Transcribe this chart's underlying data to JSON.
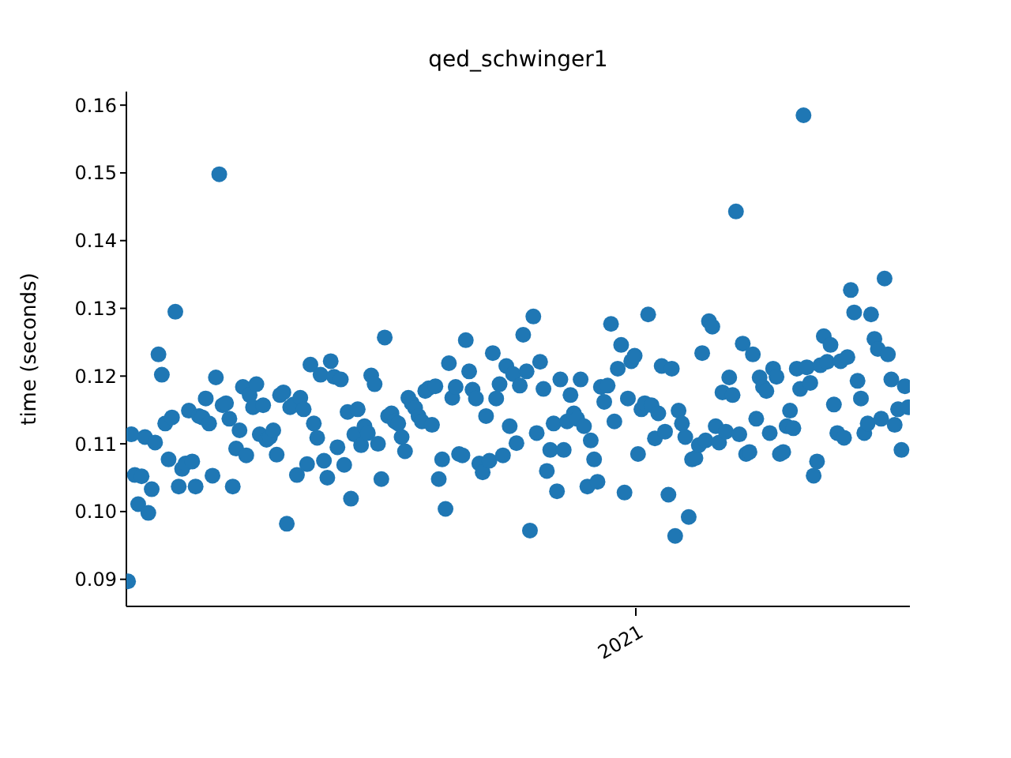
{
  "chart_data": {
    "type": "scatter",
    "title": "qed_schwinger1",
    "ylabel": "time (seconds)",
    "marker": "circle",
    "grid": false,
    "legend": false,
    "annotations": [
      "2021"
    ],
    "ylim": [
      0.086,
      0.162
    ],
    "yticks": [
      0.09,
      {
        "value": 0.1,
        "label": "0.10"
      },
      0.11,
      0.12,
      0.13,
      0.14,
      0.15,
      0.16
    ],
    "categories": [
      null,
      null,
      null,
      null,
      null,
      null,
      null,
      null,
      null,
      null,
      null,
      null,
      null,
      null,
      null,
      null,
      null,
      null,
      null,
      null,
      null,
      null,
      null,
      null,
      null,
      null,
      null,
      null,
      null,
      null,
      null,
      null,
      null,
      null,
      null,
      null,
      null,
      null,
      null,
      null,
      null,
      null,
      null,
      null,
      null,
      null,
      null,
      null,
      null,
      null,
      null,
      null,
      null,
      null,
      null,
      null,
      null,
      null,
      null,
      null,
      null,
      null,
      null,
      null,
      null,
      null,
      null,
      null,
      null,
      null,
      null,
      null,
      null,
      null,
      null,
      null,
      null,
      null,
      null,
      null,
      null,
      null,
      null,
      null,
      null,
      null,
      null,
      null,
      null,
      null,
      null,
      null,
      null,
      null,
      null,
      null,
      null,
      null,
      null,
      null,
      null,
      null,
      null,
      null,
      null,
      null,
      null,
      null,
      null,
      null,
      null,
      null,
      null,
      null,
      null,
      null,
      null,
      null,
      null,
      null,
      null,
      null,
      null,
      null,
      null,
      null,
      null,
      null,
      null,
      null,
      null,
      null,
      null,
      null,
      null,
      null,
      null,
      null,
      null,
      null,
      null,
      null,
      null,
      null,
      null,
      null,
      null,
      null,
      null,
      null,
      null,
      null,
      null,
      null,
      null,
      null,
      null,
      null,
      null,
      null,
      null,
      null,
      null,
      null,
      null,
      null,
      null,
      null,
      null,
      null,
      null,
      null,
      null,
      null,
      null,
      null,
      null,
      null,
      null,
      null,
      null,
      null,
      null,
      null,
      null,
      null,
      null,
      null,
      null,
      null,
      null,
      null,
      null,
      null,
      null,
      null,
      null,
      null,
      null,
      null,
      null,
      null,
      null,
      null,
      null,
      null,
      null,
      null,
      null,
      null,
      null,
      null,
      null,
      null,
      null,
      null,
      null,
      null,
      null,
      null,
      null,
      null,
      null,
      null,
      null,
      null,
      null,
      null,
      null,
      null,
      null,
      null
    ],
    "series": [
      {
        "color": "#1f77b4",
        "values": [
          0.0897,
          0.1114,
          0.1054,
          0.1011,
          0.1052,
          0.111,
          0.0998,
          0.1033,
          0.1102,
          0.1232,
          0.1202,
          0.113,
          0.1077,
          0.1139,
          0.1295,
          0.1037,
          0.1063,
          0.1071,
          0.1149,
          0.1074,
          0.1037,
          0.1141,
          0.1139,
          0.1167,
          0.113,
          0.1053,
          0.1198,
          0.1498,
          0.1157,
          0.116,
          0.1137,
          0.1037,
          0.1093,
          0.112,
          0.1184,
          0.1083,
          0.1172,
          0.1154,
          0.1188,
          0.1114,
          0.1157,
          0.1106,
          0.111,
          0.112,
          0.1084,
          0.1172,
          0.1176,
          0.0982,
          0.1154,
          0.1158,
          0.1054,
          0.1168,
          0.1151,
          0.107,
          0.1217,
          0.113,
          0.1109,
          0.1202,
          0.1075,
          0.105,
          0.1222,
          0.1199,
          0.1095,
          0.1195,
          0.1069,
          0.1147,
          0.1019,
          0.1114,
          0.1151,
          0.1098,
          0.1126,
          0.1116,
          0.1201,
          0.1188,
          0.11,
          0.1048,
          0.1257,
          0.1141,
          0.1145,
          0.1133,
          0.113,
          0.111,
          0.1089,
          0.1168,
          0.116,
          0.1153,
          0.1141,
          0.1133,
          0.1178,
          0.1182,
          0.1128,
          0.1185,
          0.1048,
          0.1077,
          0.1004,
          0.1219,
          0.1168,
          0.1184,
          0.1085,
          0.1083,
          0.1253,
          0.1207,
          0.118,
          0.1167,
          0.1071,
          0.1058,
          0.1141,
          0.1075,
          0.1234,
          0.1167,
          0.1188,
          0.1083,
          0.1215,
          0.1126,
          0.1203,
          0.1101,
          0.1186,
          0.1261,
          0.1207,
          0.0972,
          0.1288,
          0.1116,
          0.1221,
          0.1181,
          0.106,
          0.1091,
          0.113,
          0.103,
          0.1195,
          0.1091,
          0.1133,
          0.1172,
          0.1145,
          0.1137,
          0.1195,
          0.1126,
          0.1037,
          0.1105,
          0.1077,
          0.1044,
          0.1184,
          0.1162,
          0.1186,
          0.1277,
          0.1133,
          0.1211,
          0.1246,
          0.1028,
          0.1167,
          0.1222,
          0.123,
          0.1085,
          0.1151,
          0.116,
          0.1291,
          0.1157,
          0.1108,
          0.1145,
          0.1215,
          0.1118,
          0.1025,
          0.1211,
          0.0964,
          0.1149,
          0.113,
          0.111,
          0.0992,
          0.1077,
          0.1079,
          0.1098,
          0.1234,
          0.1105,
          0.1281,
          0.1273,
          0.1126,
          0.1102,
          0.1176,
          0.1118,
          0.1198,
          0.1172,
          0.1443,
          0.1114,
          0.1248,
          0.1085,
          0.1088,
          0.1232,
          0.1137,
          0.1198,
          0.1184,
          0.1178,
          0.1116,
          0.1211,
          0.1199,
          0.1085,
          0.1088,
          0.1126,
          0.1149,
          0.1123,
          0.1211,
          0.1181,
          0.1585,
          0.1213,
          0.119,
          0.1053,
          0.1074,
          0.1216,
          0.1259,
          0.1221,
          0.1246,
          0.1158,
          0.1116,
          0.1222,
          0.1109,
          0.1228,
          0.1327,
          0.1294,
          0.1193,
          0.1167,
          0.1116,
          0.113,
          0.1291,
          0.1255,
          0.124,
          0.1137,
          0.1344,
          0.1232,
          0.1195,
          0.1128,
          0.1151,
          0.1091,
          0.1185,
          0.1154
        ]
      }
    ]
  }
}
